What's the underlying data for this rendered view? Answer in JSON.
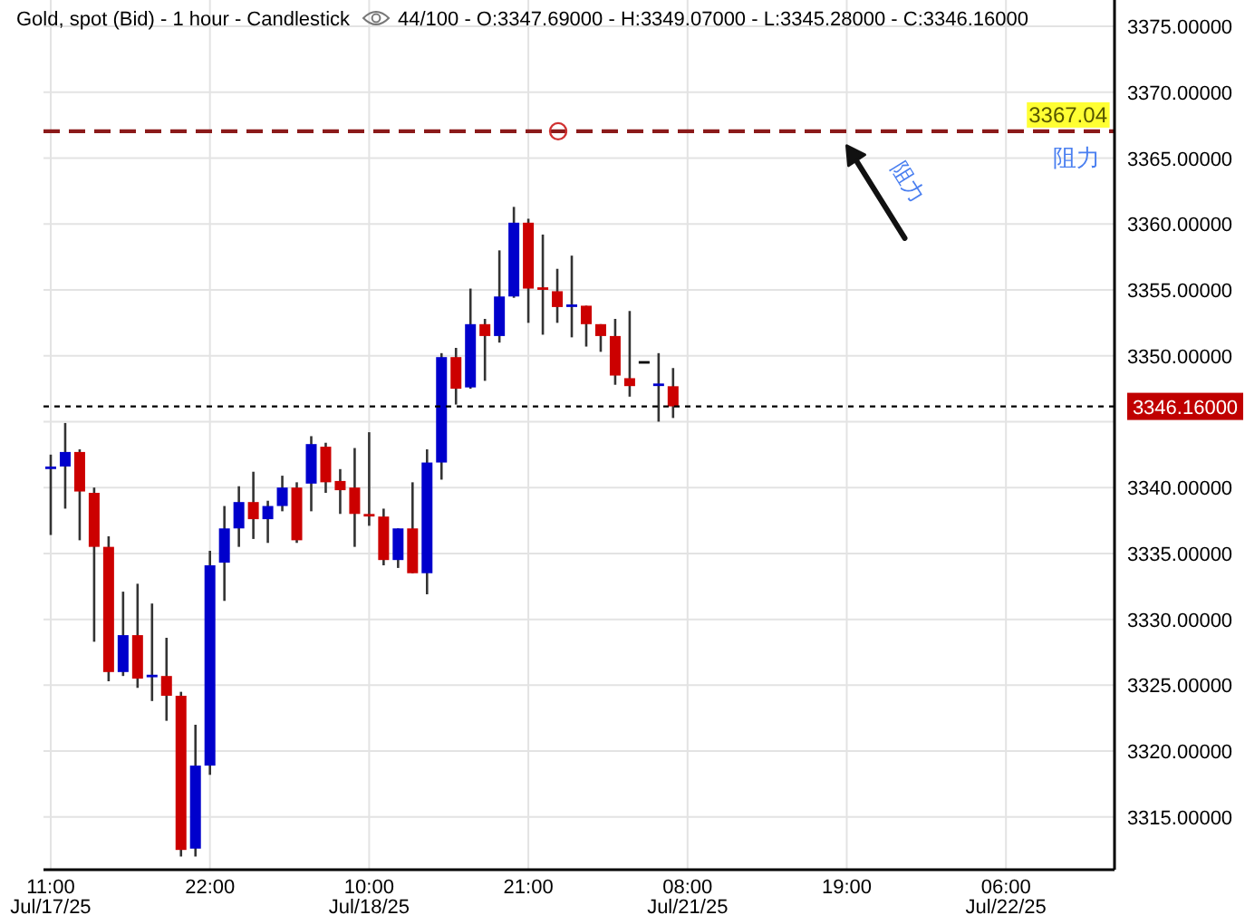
{
  "chart_data": {
    "type": "candlestick",
    "title": "Gold, spot (Bid) - 1 hour - Candlestick",
    "subtitle": "44/100 - O:3347.69000 - H:3349.07000 - L:3345.28000 - C:3346.16000",
    "categories": [
      "11:00 Jul/17/25",
      null,
      null,
      null,
      null,
      null,
      null,
      null,
      null,
      null,
      null,
      "22:00",
      null,
      null,
      null,
      null,
      null,
      null,
      null,
      null,
      null,
      null,
      "10:00 Jul/18/25",
      null,
      null,
      null,
      null,
      null,
      null,
      null,
      null,
      null,
      null,
      "21:00",
      null,
      null,
      null,
      null,
      null,
      null,
      null,
      null,
      null,
      null,
      "08:00 Jul/21/25",
      null,
      null,
      null,
      null,
      null,
      null,
      null,
      null,
      null,
      null,
      "19:00",
      null,
      null,
      null,
      null,
      null,
      null,
      null,
      null,
      null,
      null,
      "06:00 Jul/22/25",
      null,
      null,
      null,
      null,
      null,
      null,
      null
    ],
    "ohlc": [
      [
        3341.5,
        3342.5,
        3336.4,
        3341.5
      ],
      [
        3341.6,
        3344.9,
        3338.4,
        3342.7
      ],
      [
        3342.7,
        3342.9,
        3336.0,
        3339.7
      ],
      [
        3339.6,
        3340.0,
        3328.3,
        3335.5
      ],
      [
        3335.5,
        3336.3,
        3325.3,
        3326.0
      ],
      [
        3326.0,
        3332.1,
        3325.7,
        3328.8
      ],
      [
        3328.8,
        3332.7,
        3324.8,
        3325.5
      ],
      [
        3325.6,
        3331.2,
        3323.8,
        3325.7
      ],
      [
        3325.7,
        3328.6,
        3322.3,
        3324.2
      ],
      [
        3324.2,
        3324.5,
        3312.0,
        3312.5
      ],
      [
        3312.6,
        3322.0,
        3312.0,
        3318.9
      ],
      [
        3318.9,
        3335.2,
        3318.2,
        3334.1
      ],
      [
        3334.3,
        3338.6,
        3331.4,
        3336.9
      ],
      [
        3336.9,
        3340.1,
        3335.5,
        3338.9
      ],
      [
        3338.9,
        3341.2,
        3336.1,
        3337.6
      ],
      [
        3337.6,
        3339.0,
        3335.8,
        3338.6
      ],
      [
        3338.6,
        3340.9,
        3338.2,
        3340.0
      ],
      [
        3340.0,
        3340.4,
        3335.8,
        3336.0
      ],
      [
        3340.3,
        3343.9,
        3338.2,
        3343.3
      ],
      [
        3343.1,
        3343.4,
        3339.6,
        3340.4
      ],
      [
        3340.5,
        3341.4,
        3338.0,
        3339.8
      ],
      [
        3340.0,
        3343.0,
        3335.5,
        3338.0
      ],
      [
        3337.9,
        3344.2,
        3337.1,
        3337.8
      ],
      [
        3337.8,
        3338.4,
        3334.1,
        3334.5
      ],
      [
        3334.5,
        3336.9,
        3333.9,
        3336.9
      ],
      [
        3336.9,
        3340.4,
        3333.5,
        3333.5
      ],
      [
        3333.5,
        3342.9,
        3331.9,
        3341.9
      ],
      [
        3341.9,
        3350.2,
        3340.6,
        3349.9
      ],
      [
        3349.9,
        3350.6,
        3346.3,
        3347.5
      ],
      [
        3347.6,
        3355.1,
        3347.5,
        3352.4
      ],
      [
        3352.4,
        3352.8,
        3348.1,
        3351.5
      ],
      [
        3351.5,
        3358.0,
        3351.0,
        3354.5
      ],
      [
        3354.5,
        3361.3,
        3354.4,
        3360.1
      ],
      [
        3360.1,
        3360.4,
        3352.5,
        3355.1
      ],
      [
        3355.1,
        3359.2,
        3351.6,
        3355.0
      ],
      [
        3354.9,
        3356.6,
        3352.5,
        3353.7
      ],
      [
        3353.7,
        3357.6,
        3351.4,
        3353.8
      ],
      [
        3353.8,
        3353.8,
        3350.7,
        3352.4
      ],
      [
        3352.4,
        3352.4,
        3350.3,
        3351.5
      ],
      [
        3351.5,
        3352.8,
        3347.8,
        3348.5
      ],
      [
        3348.3,
        3353.4,
        3346.9,
        3347.7
      ],
      [
        3349.5,
        3349.5,
        3349.5,
        3349.5
      ],
      [
        3347.7,
        3350.2,
        3345.0,
        3347.8
      ],
      [
        3347.69,
        3349.07,
        3345.28,
        3346.16
      ],
      null,
      null,
      null,
      null,
      null,
      null,
      null,
      null,
      null,
      null,
      null,
      null,
      null,
      null,
      null,
      null,
      null,
      null,
      null,
      null,
      null,
      null,
      null,
      null,
      null,
      null,
      null,
      null,
      null,
      null
    ],
    "colors": [
      "#0000cc",
      "#0000cc",
      "#cc0000",
      "#cc0000",
      "#cc0000",
      "#0000cc",
      "#cc0000",
      "#0000cc",
      "#cc0000",
      "#cc0000",
      "#0000cc",
      "#0000cc",
      "#0000cc",
      "#0000cc",
      "#cc0000",
      "#0000cc",
      "#0000cc",
      "#cc0000",
      "#0000cc",
      "#cc0000",
      "#cc0000",
      "#cc0000",
      "#cc0000",
      "#cc0000",
      "#0000cc",
      "#cc0000",
      "#0000cc",
      "#0000cc",
      "#cc0000",
      "#0000cc",
      "#cc0000",
      "#0000cc",
      "#0000cc",
      "#cc0000",
      "#cc0000",
      "#cc0000",
      "#0000cc",
      "#cc0000",
      "#cc0000",
      "#cc0000",
      "#cc0000",
      "#000000",
      "#0000cc",
      "#cc0000",
      null,
      null,
      null,
      null,
      null,
      null,
      null,
      null,
      null,
      null,
      null,
      null,
      null,
      null,
      null,
      null,
      null,
      null,
      null,
      null,
      null,
      null,
      null,
      null,
      null,
      null,
      null,
      null,
      null,
      null
    ],
    "ylim": [
      3311,
      3377
    ],
    "yticks": [
      {
        "value": 3315,
        "label": "3315.00000"
      },
      {
        "value": 3320,
        "label": "3320.00000"
      },
      {
        "value": 3325,
        "label": "3325.00000"
      },
      {
        "value": 3330,
        "label": "3330.00000"
      },
      {
        "value": 3335,
        "label": "3335.00000"
      },
      {
        "value": 3340,
        "label": "3340.00000"
      },
      {
        "value": 3345,
        "label": null
      },
      {
        "value": 3350,
        "label": "3350.00000"
      },
      {
        "value": 3355,
        "label": "3355.00000"
      },
      {
        "value": 3360,
        "label": "3360.00000"
      },
      {
        "value": 3365,
        "label": "3365.00000"
      },
      {
        "value": 3370,
        "label": "3370.00000"
      },
      {
        "value": 3375,
        "label": "3375.00000"
      }
    ],
    "grid": true,
    "ref_lines": [
      {
        "axis": "y",
        "value": 3367.04,
        "label": "阻力",
        "color": "#8b1a1a",
        "line_style": "dashed"
      },
      {
        "axis": "y",
        "value": 3346.16,
        "label": "3346.16000",
        "color": "#000000",
        "line_style": "dotted"
      }
    ],
    "annotations": [
      {
        "text": "3367.04",
        "y": 3367.04
      },
      {
        "text": "阻力",
        "x": "19:00",
        "y": 3367.04
      }
    ]
  }
}
